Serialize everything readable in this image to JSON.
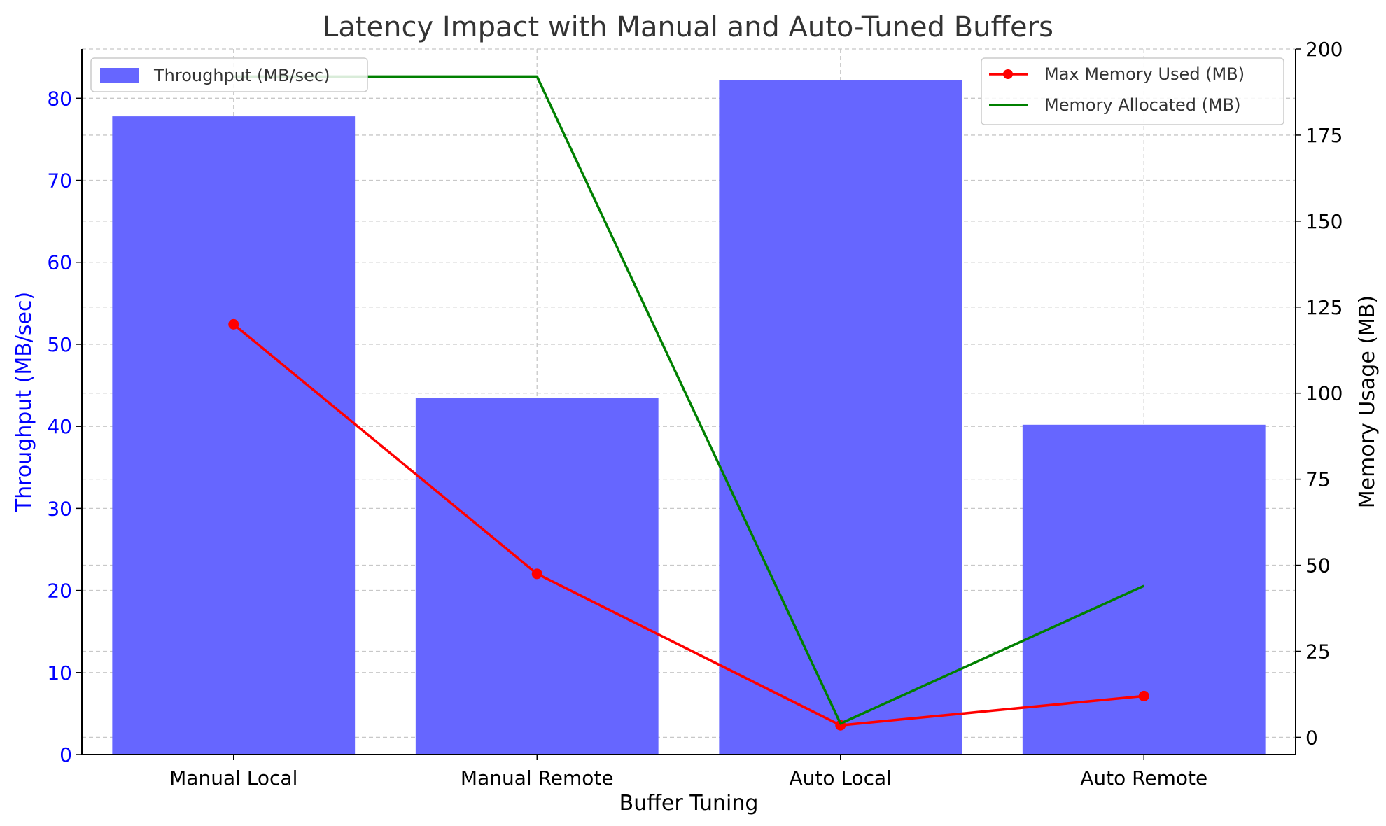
{
  "chart_data": {
    "type": "bar",
    "title": "Latency Impact with Manual and Auto-Tuned Buffers",
    "xlabel": "Buffer Tuning",
    "ylabel": "Throughput (MB/sec)",
    "ylabel_right": "Memory Usage (MB)",
    "categories": [
      "Manual Local",
      "Manual Remote",
      "Auto Local",
      "Auto Remote"
    ],
    "ylim": [
      0,
      86
    ],
    "yticks": [
      0,
      10,
      20,
      30,
      40,
      50,
      60,
      70,
      80
    ],
    "ylim_right": [
      -5,
      200
    ],
    "yticks_right": [
      0,
      25,
      50,
      75,
      100,
      125,
      150,
      175,
      200
    ],
    "grid": true,
    "series": [
      {
        "name": "Throughput (MB/sec)",
        "type": "bar",
        "axis": "left",
        "color": "#6666ff",
        "values": [
          77.8,
          43.5,
          82.2,
          40.2
        ]
      },
      {
        "name": "Max Memory Used (MB)",
        "type": "line",
        "marker": "circle",
        "axis": "right",
        "color": "#ff0000",
        "values": [
          120,
          47.5,
          3.5,
          12
        ]
      },
      {
        "name": "Memory Allocated (MB)",
        "type": "line",
        "axis": "right",
        "color": "#008000",
        "values": [
          192,
          192,
          4,
          44
        ]
      }
    ],
    "legends": {
      "left": {
        "placement": "top-left",
        "entries": [
          "Throughput (MB/sec)"
        ]
      },
      "right": {
        "placement": "top-right",
        "entries": [
          "Max Memory Used (MB)",
          "Memory Allocated (MB)"
        ]
      }
    },
    "colors": {
      "left_axis": "#0000ff",
      "right_axis": "#000000",
      "grid": "#c8c8c8"
    }
  }
}
